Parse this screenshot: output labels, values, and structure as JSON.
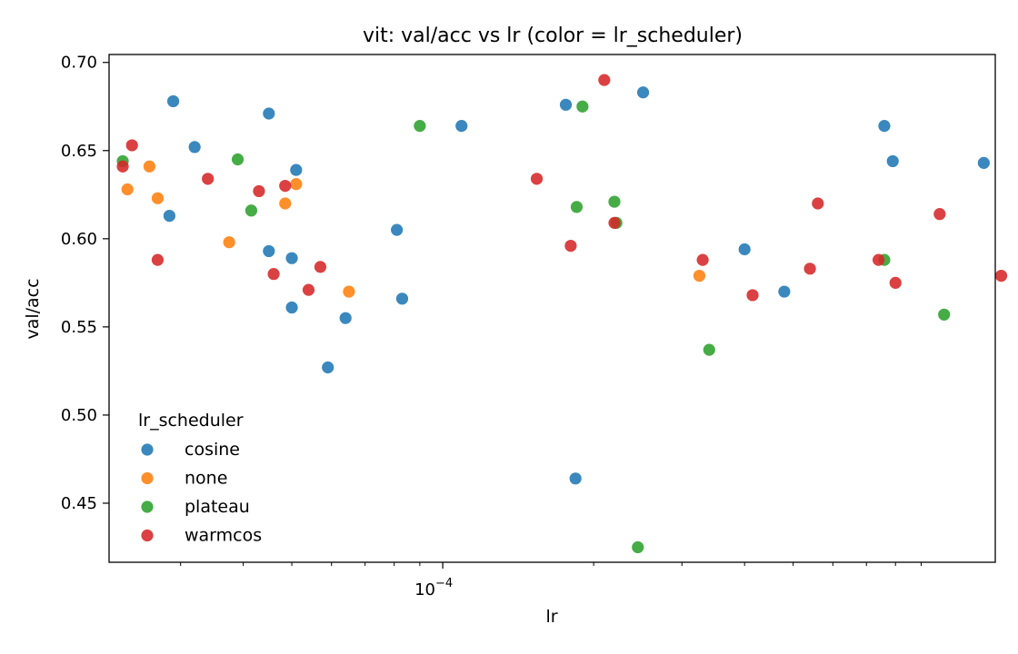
{
  "chart_data": {
    "type": "scatter",
    "title": "vit: val/acc vs lr (color = lr_scheduler)",
    "xlabel": "lr",
    "ylabel": "val/acc",
    "xscale": "log",
    "xlim": [
      2.16e-05,
      0.001265
    ],
    "ylim": [
      0.4165,
      0.7045
    ],
    "grid": false,
    "legend": {
      "title": "lr_scheduler",
      "location": "lower-left"
    },
    "x_ticks": [
      {
        "value": 0.0001,
        "base": "10",
        "exponent": "−4"
      }
    ],
    "y_ticks": [
      {
        "value": 0.45,
        "label": "0.45"
      },
      {
        "value": 0.5,
        "label": "0.50"
      },
      {
        "value": 0.55,
        "label": "0.55"
      },
      {
        "value": 0.6,
        "label": "0.60"
      },
      {
        "value": 0.65,
        "label": "0.65"
      },
      {
        "value": 0.7,
        "label": "0.70"
      }
    ],
    "series": [
      {
        "name": "cosine",
        "color": "#1f77b4",
        "points": [
          [
            2.9e-05,
            0.678
          ],
          [
            3.2e-05,
            0.652
          ],
          [
            2.85e-05,
            0.613
          ],
          [
            4.5e-05,
            0.671
          ],
          [
            4.5e-05,
            0.593
          ],
          [
            5.1e-05,
            0.639
          ],
          [
            5e-05,
            0.589
          ],
          [
            5e-05,
            0.561
          ],
          [
            5.9e-05,
            0.527
          ],
          [
            6.4e-05,
            0.555
          ],
          [
            8.1e-05,
            0.605
          ],
          [
            8.3e-05,
            0.566
          ],
          [
            0.000109,
            0.664
          ],
          [
            0.000176,
            0.676
          ],
          [
            0.000184,
            0.464
          ],
          [
            0.000251,
            0.683
          ],
          [
            0.0004,
            0.594
          ],
          [
            0.00048,
            0.57
          ],
          [
            0.00076,
            0.664
          ],
          [
            0.00079,
            0.644
          ],
          [
            0.0012,
            0.643
          ]
        ]
      },
      {
        "name": "none",
        "color": "#ff7f0e",
        "points": [
          [
            2.35e-05,
            0.628
          ],
          [
            2.6e-05,
            0.641
          ],
          [
            2.7e-05,
            0.623
          ],
          [
            3.75e-05,
            0.598
          ],
          [
            4.85e-05,
            0.62
          ],
          [
            5.1e-05,
            0.631
          ],
          [
            6.5e-05,
            0.57
          ],
          [
            0.000325,
            0.579
          ]
        ]
      },
      {
        "name": "plateau",
        "color": "#2ca02c",
        "points": [
          [
            2.3e-05,
            0.644
          ],
          [
            3.9e-05,
            0.645
          ],
          [
            4.15e-05,
            0.616
          ],
          [
            9e-05,
            0.664
          ],
          [
            0.000185,
            0.618
          ],
          [
            0.00019,
            0.675
          ],
          [
            0.00022,
            0.621
          ],
          [
            0.000222,
            0.609
          ],
          [
            0.000245,
            0.425
          ],
          [
            0.00034,
            0.537
          ],
          [
            0.00076,
            0.588
          ],
          [
            0.001,
            0.557
          ]
        ]
      },
      {
        "name": "warmcos",
        "color": "#d62728",
        "points": [
          [
            2.3e-05,
            0.641
          ],
          [
            2.4e-05,
            0.653
          ],
          [
            2.7e-05,
            0.588
          ],
          [
            3.4e-05,
            0.634
          ],
          [
            4.3e-05,
            0.627
          ],
          [
            4.6e-05,
            0.58
          ],
          [
            4.85e-05,
            0.63
          ],
          [
            5.4e-05,
            0.571
          ],
          [
            5.7e-05,
            0.584
          ],
          [
            0.000154,
            0.634
          ],
          [
            0.00018,
            0.596
          ],
          [
            0.00021,
            0.69
          ],
          [
            0.00022,
            0.609
          ],
          [
            0.00033,
            0.588
          ],
          [
            0.000415,
            0.568
          ],
          [
            0.00054,
            0.583
          ],
          [
            0.00056,
            0.62
          ],
          [
            0.00074,
            0.588
          ],
          [
            0.0008,
            0.575
          ],
          [
            0.00098,
            0.614
          ],
          [
            0.0013,
            0.579
          ]
        ]
      }
    ]
  }
}
